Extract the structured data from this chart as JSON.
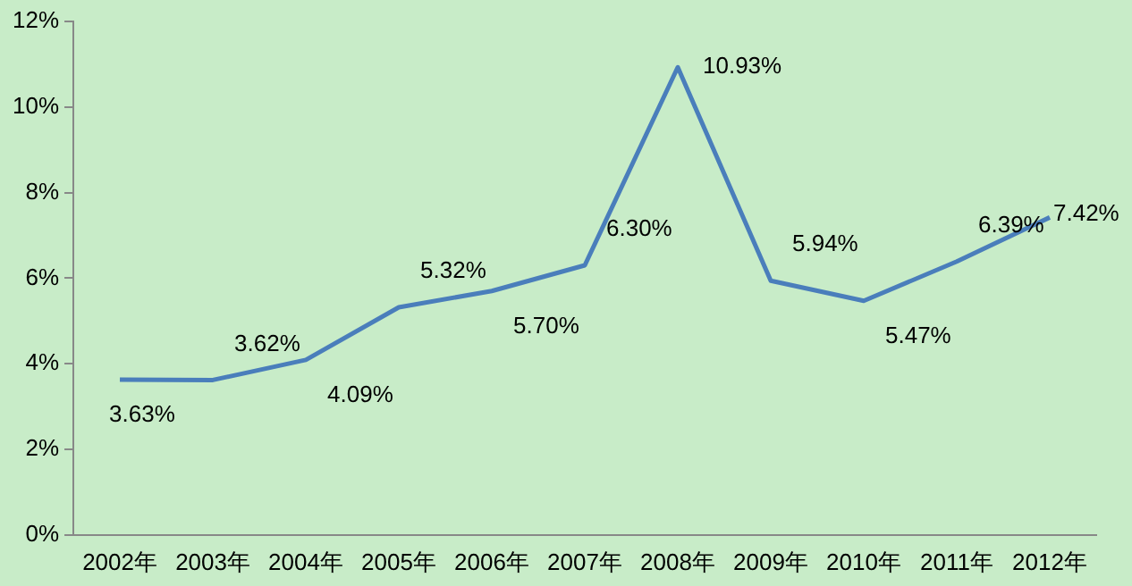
{
  "chart_data": {
    "type": "line",
    "categories": [
      "2002年",
      "2003年",
      "2004年",
      "2005年",
      "2006年",
      "2007年",
      "2008年",
      "2009年",
      "2010年",
      "2011年",
      "2012年"
    ],
    "series": [
      {
        "color": "#4a7ebb",
        "values": [
          3.63,
          3.62,
          4.09,
          5.32,
          5.7,
          6.3,
          10.93,
          5.94,
          5.47,
          6.39,
          7.42
        ],
        "value_labels": [
          "3.63%",
          "3.62%",
          "4.09%",
          "5.32%",
          "5.70%",
          "6.30%",
          "10.93%",
          "5.94%",
          "5.47%",
          "6.39%",
          "7.42%"
        ]
      }
    ],
    "ylim": [
      0,
      12
    ],
    "yticks": [
      {
        "value": 0,
        "label": "0%"
      },
      {
        "value": 2,
        "label": "2%"
      },
      {
        "value": 4,
        "label": "4%"
      },
      {
        "value": 6,
        "label": "6%"
      },
      {
        "value": 8,
        "label": "8%"
      },
      {
        "value": 10,
        "label": "10%"
      },
      {
        "value": 12,
        "label": "12%"
      }
    ],
    "grid": false,
    "legend": false,
    "marker": "none",
    "line_style": "solid"
  }
}
